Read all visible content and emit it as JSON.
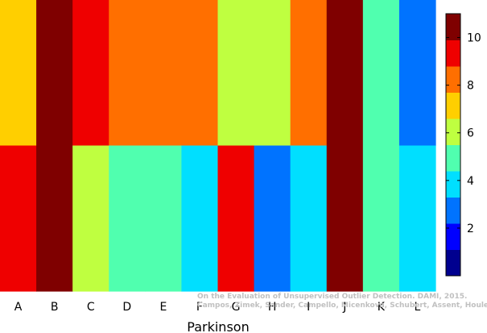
{
  "chart_data": {
    "type": "heatmap",
    "title": "",
    "xlabel": "Parkinson",
    "ylabel": "",
    "categories": [
      "A",
      "B",
      "C",
      "D",
      "E",
      "F",
      "G",
      "H",
      "I",
      "J",
      "K",
      "L"
    ],
    "rows": [
      {
        "values": [
          7,
          10,
          9,
          8,
          8,
          8,
          6,
          6,
          8,
          10,
          5,
          3
        ]
      },
      {
        "values": [
          9,
          10,
          6,
          5,
          5,
          4,
          9,
          3,
          4,
          10,
          5,
          4
        ]
      }
    ],
    "colorbar": {
      "ticks": [
        2,
        4,
        6,
        8,
        10
      ],
      "range": [
        0,
        11
      ],
      "colors": [
        "#00008f",
        "#0000ff",
        "#0073ff",
        "#00dfff",
        "#50ffaf",
        "#bfff40",
        "#ffcf00",
        "#ff6f00",
        "#ef0000",
        "#7f0000"
      ]
    },
    "watermark": {
      "line1": "On the Evaluation of Unsupervised Outlier Detection. DAMI, 2015.",
      "line2": "Campos, Zimek, Sander, Campello, Micenková, Schubert, Assent, Houle"
    }
  }
}
